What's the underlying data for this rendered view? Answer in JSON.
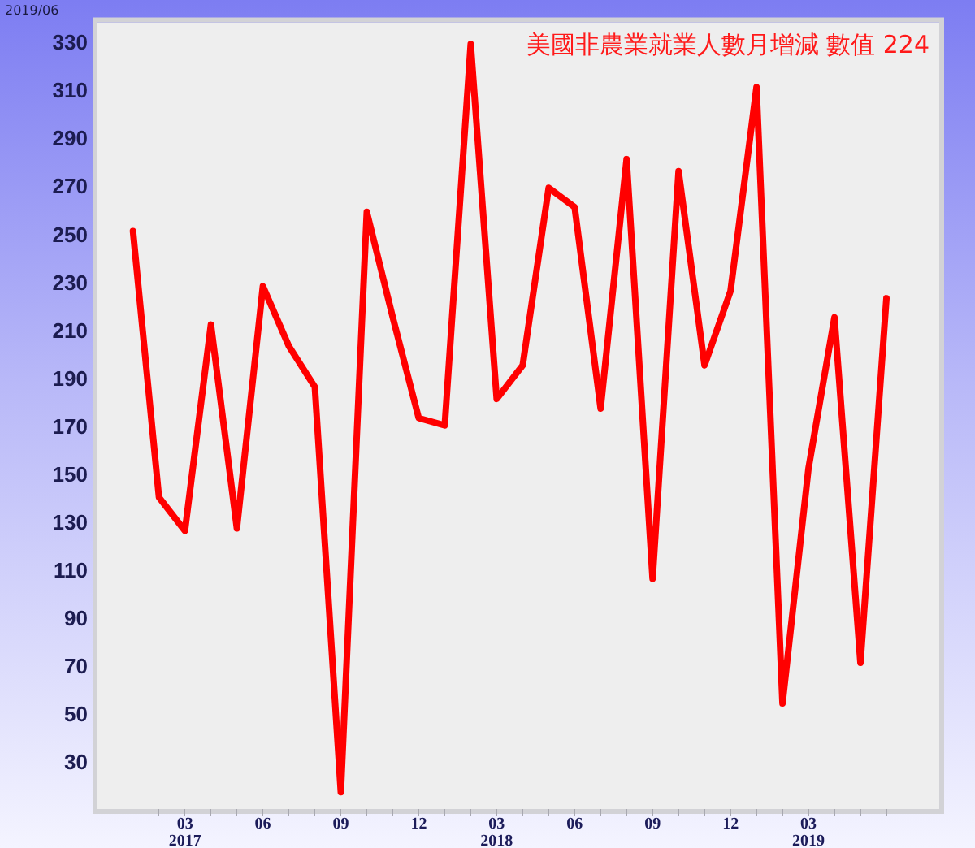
{
  "chart_data": {
    "type": "line",
    "title": "美國非農業就業人數月增減 數值 224",
    "annotations": [
      "2019/06"
    ],
    "x": [
      "2017-01",
      "2017-02",
      "2017-03",
      "2017-04",
      "2017-05",
      "2017-06",
      "2017-07",
      "2017-08",
      "2017-09",
      "2017-10",
      "2017-11",
      "2017-12",
      "2018-01",
      "2018-02",
      "2018-03",
      "2018-04",
      "2018-05",
      "2018-06",
      "2018-07",
      "2018-08",
      "2018-09",
      "2018-10",
      "2018-11",
      "2018-12",
      "2019-01",
      "2019-02",
      "2019-03",
      "2019-04",
      "2019-05",
      "2019-06"
    ],
    "series": [
      {
        "color": "#ff0000",
        "values": [
          252,
          141,
          127,
          213,
          128,
          229,
          204,
          187,
          18,
          260,
          216,
          174,
          171,
          330,
          182,
          196,
          270,
          262,
          178,
          282,
          107,
          277,
          196,
          227,
          312,
          55,
          153,
          216,
          72,
          224
        ]
      }
    ],
    "xlim": [
      "2016-11-20",
      "2019-08-02"
    ],
    "xticks": [
      {
        "value": "2017-02",
        "label": null
      },
      {
        "value": "2017-03",
        "label": "03\n2017"
      },
      {
        "value": "2017-04",
        "label": null
      },
      {
        "value": "2017-05",
        "label": null
      },
      {
        "value": "2017-06",
        "label": "06"
      },
      {
        "value": "2017-07",
        "label": null
      },
      {
        "value": "2017-08",
        "label": null
      },
      {
        "value": "2017-09",
        "label": "09"
      },
      {
        "value": "2017-10",
        "label": null
      },
      {
        "value": "2017-11",
        "label": null
      },
      {
        "value": "2017-12",
        "label": "12"
      },
      {
        "value": "2018-01",
        "label": null
      },
      {
        "value": "2018-02",
        "label": null
      },
      {
        "value": "2018-03",
        "label": "03\n2018"
      },
      {
        "value": "2018-04",
        "label": null
      },
      {
        "value": "2018-05",
        "label": null
      },
      {
        "value": "2018-06",
        "label": "06"
      },
      {
        "value": "2018-07",
        "label": null
      },
      {
        "value": "2018-08",
        "label": null
      },
      {
        "value": "2018-09",
        "label": "09"
      },
      {
        "value": "2018-10",
        "label": null
      },
      {
        "value": "2018-11",
        "label": null
      },
      {
        "value": "2018-12",
        "label": "12"
      },
      {
        "value": "2019-01",
        "label": null
      },
      {
        "value": "2019-02",
        "label": null
      },
      {
        "value": "2019-03",
        "label": "03\n2019"
      },
      {
        "value": "2019-04",
        "label": null
      },
      {
        "value": "2019-05",
        "label": null
      },
      {
        "value": "2019-06",
        "label": null
      }
    ],
    "ylim": [
      11,
      339
    ],
    "yticks": [
      30,
      50,
      70,
      90,
      110,
      130,
      150,
      170,
      190,
      210,
      230,
      250,
      270,
      290,
      310,
      330
    ],
    "grid": false,
    "legend": false,
    "marker": "none",
    "line_style": "solid"
  }
}
